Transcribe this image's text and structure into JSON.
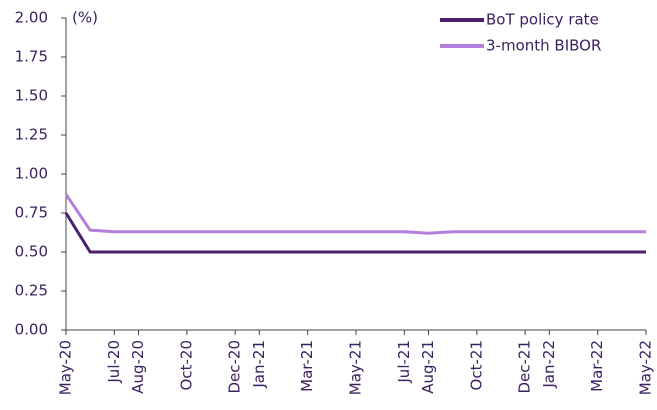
{
  "chart_data": {
    "type": "line",
    "y_label": "(%)",
    "x": [
      "2020-05",
      "2020-06",
      "2020-07",
      "2020-08",
      "2020-09",
      "2020-10",
      "2020-11",
      "2020-12",
      "2021-01",
      "2021-02",
      "2021-03",
      "2021-04",
      "2021-05",
      "2021-06",
      "2021-07",
      "2021-08",
      "2021-09",
      "2021-10",
      "2021-11",
      "2021-12",
      "2022-01",
      "2022-02",
      "2022-03",
      "2022-04",
      "2022-05"
    ],
    "series": [
      {
        "name": "BoT policy rate",
        "color": "#4b1e6e",
        "values": [
          0.75,
          0.5,
          0.5,
          0.5,
          0.5,
          0.5,
          0.5,
          0.5,
          0.5,
          0.5,
          0.5,
          0.5,
          0.5,
          0.5,
          0.5,
          0.5,
          0.5,
          0.5,
          0.5,
          0.5,
          0.5,
          0.5,
          0.5,
          0.5,
          0.5
        ]
      },
      {
        "name": "3-month BIBOR",
        "color": "#b57edc",
        "values": [
          0.87,
          0.64,
          0.63,
          0.63,
          0.63,
          0.63,
          0.63,
          0.63,
          0.63,
          0.63,
          0.63,
          0.63,
          0.63,
          0.63,
          0.63,
          0.62,
          0.63,
          0.63,
          0.63,
          0.63,
          0.63,
          0.63,
          0.63,
          0.63,
          0.63
        ]
      }
    ],
    "xlim": [
      "2020-05",
      "2022-05"
    ],
    "xticks": [
      {
        "value": "2020-05",
        "label": "May-20"
      },
      {
        "value": "2020-07",
        "label": "Jul-20"
      },
      {
        "value": "2020-08",
        "label": "Aug-20"
      },
      {
        "value": "2020-10",
        "label": "Oct-20"
      },
      {
        "value": "2020-12",
        "label": "Dec-20"
      },
      {
        "value": "2021-01",
        "label": "Jan-21"
      },
      {
        "value": "2021-03",
        "label": "Mar-21"
      },
      {
        "value": "2021-05",
        "label": "May-21"
      },
      {
        "value": "2021-07",
        "label": "Jul-21"
      },
      {
        "value": "2021-08",
        "label": "Aug-21"
      },
      {
        "value": "2021-10",
        "label": "Oct-21"
      },
      {
        "value": "2021-12",
        "label": "Dec-21"
      },
      {
        "value": "2022-01",
        "label": "Jan-22"
      },
      {
        "value": "2022-03",
        "label": "Mar-22"
      },
      {
        "value": "2022-05",
        "label": "May-22"
      }
    ],
    "ylim": [
      0,
      2
    ],
    "yticks": [
      {
        "value": 0,
        "label": "0.00"
      },
      {
        "value": 0.25,
        "label": "0.25"
      },
      {
        "value": 0.5,
        "label": "0.50"
      },
      {
        "value": 0.75,
        "label": "0.75"
      },
      {
        "value": 1,
        "label": "1.00"
      },
      {
        "value": 1.25,
        "label": "1.25"
      },
      {
        "value": 1.5,
        "label": "1.50"
      },
      {
        "value": 1.75,
        "label": "1.75"
      },
      {
        "value": 2,
        "label": "2.00"
      }
    ],
    "legend": "upper right"
  }
}
